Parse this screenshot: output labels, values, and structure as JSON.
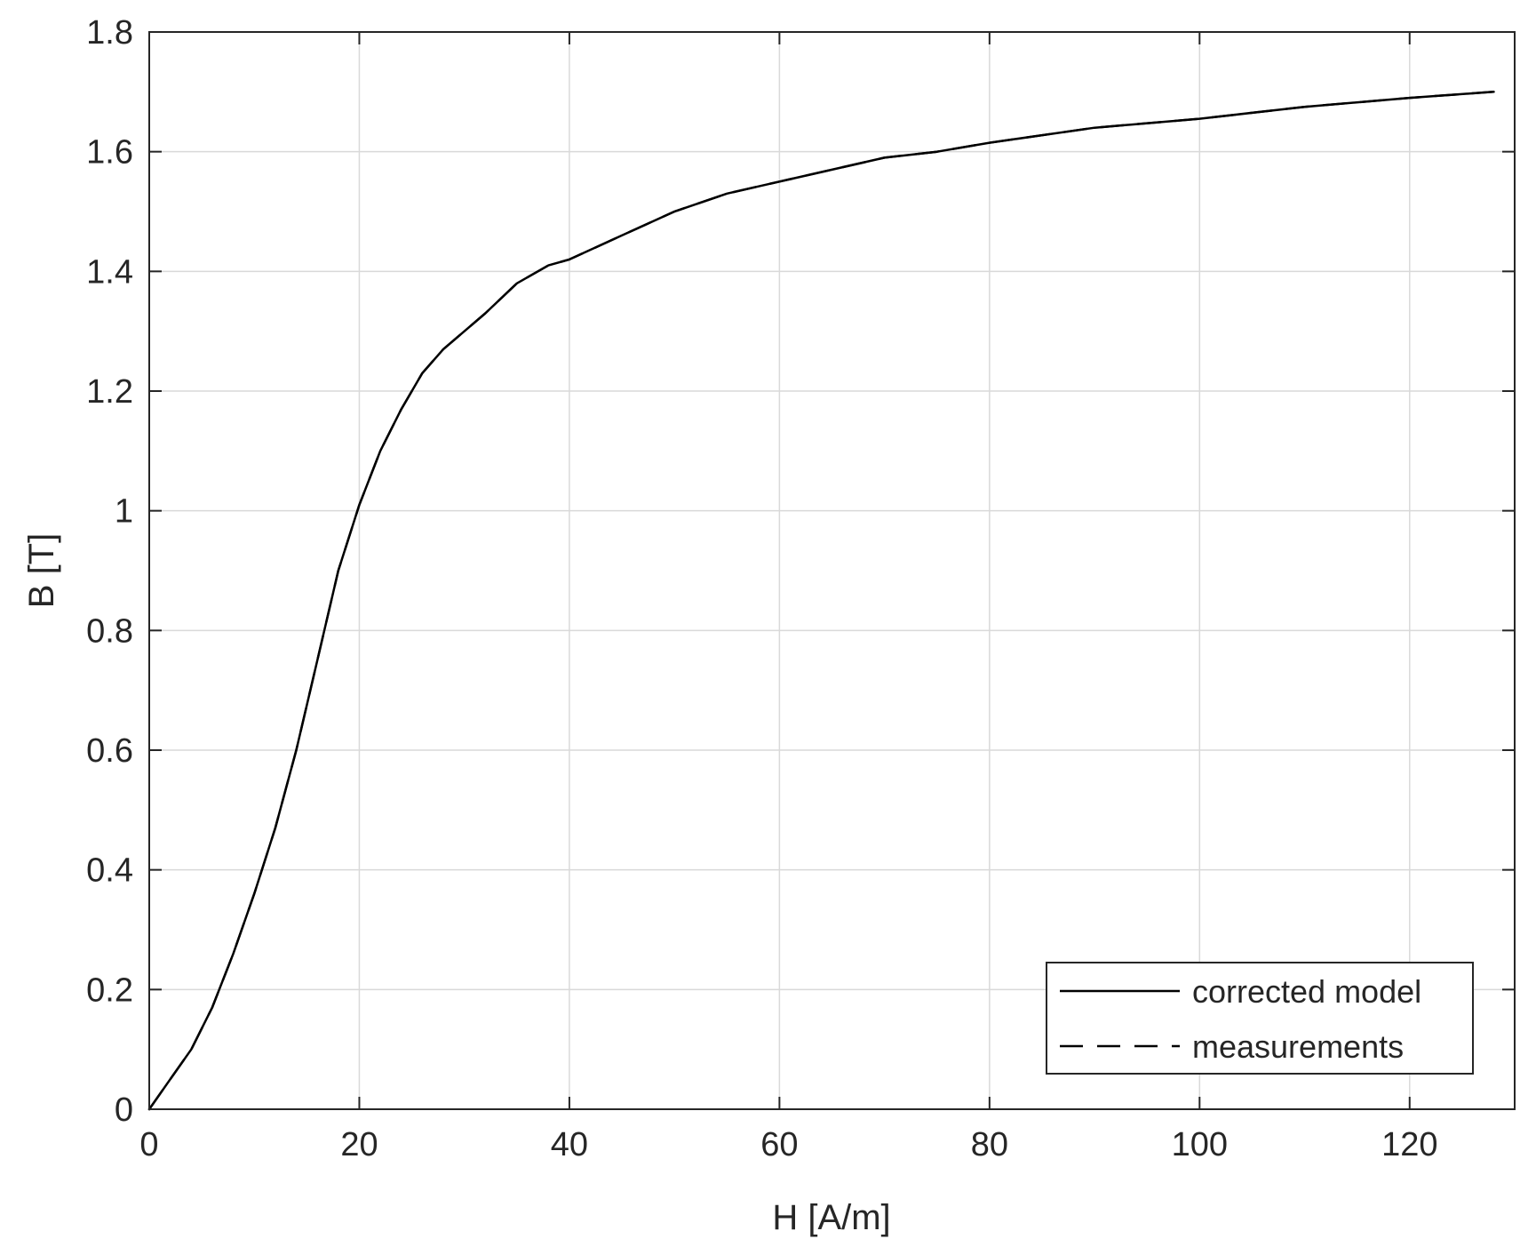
{
  "chart_data": {
    "type": "line",
    "title": "",
    "xlabel": "H [A/m]",
    "ylabel": "B [T]",
    "xlim": [
      0,
      130
    ],
    "ylim": [
      0,
      1.8
    ],
    "x_ticks": [
      0,
      20,
      40,
      60,
      80,
      100,
      120
    ],
    "y_ticks": [
      0,
      0.2,
      0.4,
      0.6,
      0.8,
      1,
      1.2,
      1.4,
      1.6,
      1.8
    ],
    "x_tick_labels": [
      "0",
      "20",
      "40",
      "60",
      "80",
      "100",
      "120"
    ],
    "y_tick_labels": [
      "0",
      "0.2",
      "0.4",
      "0.6",
      "0.8",
      "1",
      "1.2",
      "1.4",
      "1.6",
      "1.8"
    ],
    "grid": true,
    "legend_position": "bottom-right",
    "series": [
      {
        "name": "corrected model",
        "style": "solid",
        "color": "#000000",
        "x": [
          0,
          2,
          4,
          6,
          8,
          10,
          12,
          14,
          16,
          18,
          20,
          22,
          24,
          26,
          28,
          30,
          32,
          35,
          38,
          40,
          45,
          50,
          55,
          60,
          65,
          70,
          75,
          80,
          90,
          100,
          110,
          120,
          128
        ],
        "y": [
          0,
          0.05,
          0.1,
          0.17,
          0.26,
          0.36,
          0.47,
          0.6,
          0.75,
          0.9,
          1.01,
          1.1,
          1.17,
          1.23,
          1.27,
          1.3,
          1.33,
          1.38,
          1.41,
          1.42,
          1.46,
          1.5,
          1.53,
          1.55,
          1.57,
          1.59,
          1.6,
          1.615,
          1.64,
          1.655,
          1.675,
          1.69,
          1.7
        ]
      },
      {
        "name": "measurements",
        "style": "dashed",
        "color": "#000000",
        "x": [
          0,
          2,
          4,
          6,
          8,
          10,
          12,
          14,
          16,
          18,
          20,
          22,
          24,
          26,
          28,
          30,
          32,
          35,
          38,
          40,
          45,
          50,
          55,
          60,
          65,
          70,
          75,
          80,
          90,
          100,
          110,
          120,
          128
        ],
        "y": [
          0,
          0.05,
          0.1,
          0.17,
          0.26,
          0.36,
          0.47,
          0.6,
          0.75,
          0.9,
          1.01,
          1.1,
          1.17,
          1.23,
          1.27,
          1.3,
          1.33,
          1.38,
          1.41,
          1.42,
          1.46,
          1.5,
          1.53,
          1.55,
          1.57,
          1.59,
          1.6,
          1.615,
          1.64,
          1.655,
          1.675,
          1.69,
          1.7
        ]
      }
    ]
  }
}
